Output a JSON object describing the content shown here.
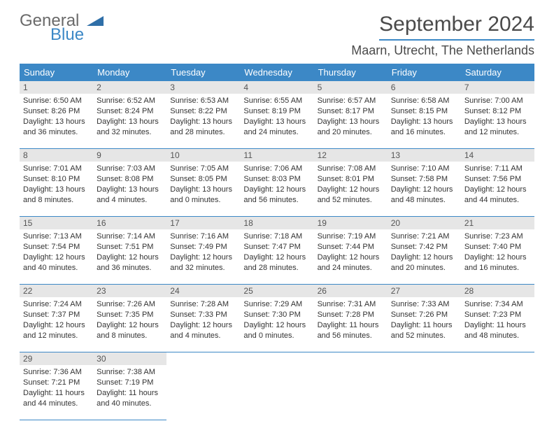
{
  "brand": {
    "name1": "General",
    "name2": "Blue"
  },
  "title": {
    "month": "September 2024",
    "location": "Maarn, Utrecht, The Netherlands"
  },
  "colors": {
    "accent": "#3c88c6",
    "header_bg": "#3c88c6",
    "daynum_bg": "#e6e6e6"
  },
  "weekdays": [
    "Sunday",
    "Monday",
    "Tuesday",
    "Wednesday",
    "Thursday",
    "Friday",
    "Saturday"
  ],
  "days": [
    {
      "n": "1",
      "sunrise": "Sunrise: 6:50 AM",
      "sunset": "Sunset: 8:26 PM",
      "day": "Daylight: 13 hours and 36 minutes."
    },
    {
      "n": "2",
      "sunrise": "Sunrise: 6:52 AM",
      "sunset": "Sunset: 8:24 PM",
      "day": "Daylight: 13 hours and 32 minutes."
    },
    {
      "n": "3",
      "sunrise": "Sunrise: 6:53 AM",
      "sunset": "Sunset: 8:22 PM",
      "day": "Daylight: 13 hours and 28 minutes."
    },
    {
      "n": "4",
      "sunrise": "Sunrise: 6:55 AM",
      "sunset": "Sunset: 8:19 PM",
      "day": "Daylight: 13 hours and 24 minutes."
    },
    {
      "n": "5",
      "sunrise": "Sunrise: 6:57 AM",
      "sunset": "Sunset: 8:17 PM",
      "day": "Daylight: 13 hours and 20 minutes."
    },
    {
      "n": "6",
      "sunrise": "Sunrise: 6:58 AM",
      "sunset": "Sunset: 8:15 PM",
      "day": "Daylight: 13 hours and 16 minutes."
    },
    {
      "n": "7",
      "sunrise": "Sunrise: 7:00 AM",
      "sunset": "Sunset: 8:12 PM",
      "day": "Daylight: 13 hours and 12 minutes."
    },
    {
      "n": "8",
      "sunrise": "Sunrise: 7:01 AM",
      "sunset": "Sunset: 8:10 PM",
      "day": "Daylight: 13 hours and 8 minutes."
    },
    {
      "n": "9",
      "sunrise": "Sunrise: 7:03 AM",
      "sunset": "Sunset: 8:08 PM",
      "day": "Daylight: 13 hours and 4 minutes."
    },
    {
      "n": "10",
      "sunrise": "Sunrise: 7:05 AM",
      "sunset": "Sunset: 8:05 PM",
      "day": "Daylight: 13 hours and 0 minutes."
    },
    {
      "n": "11",
      "sunrise": "Sunrise: 7:06 AM",
      "sunset": "Sunset: 8:03 PM",
      "day": "Daylight: 12 hours and 56 minutes."
    },
    {
      "n": "12",
      "sunrise": "Sunrise: 7:08 AM",
      "sunset": "Sunset: 8:01 PM",
      "day": "Daylight: 12 hours and 52 minutes."
    },
    {
      "n": "13",
      "sunrise": "Sunrise: 7:10 AM",
      "sunset": "Sunset: 7:58 PM",
      "day": "Daylight: 12 hours and 48 minutes."
    },
    {
      "n": "14",
      "sunrise": "Sunrise: 7:11 AM",
      "sunset": "Sunset: 7:56 PM",
      "day": "Daylight: 12 hours and 44 minutes."
    },
    {
      "n": "15",
      "sunrise": "Sunrise: 7:13 AM",
      "sunset": "Sunset: 7:54 PM",
      "day": "Daylight: 12 hours and 40 minutes."
    },
    {
      "n": "16",
      "sunrise": "Sunrise: 7:14 AM",
      "sunset": "Sunset: 7:51 PM",
      "day": "Daylight: 12 hours and 36 minutes."
    },
    {
      "n": "17",
      "sunrise": "Sunrise: 7:16 AM",
      "sunset": "Sunset: 7:49 PM",
      "day": "Daylight: 12 hours and 32 minutes."
    },
    {
      "n": "18",
      "sunrise": "Sunrise: 7:18 AM",
      "sunset": "Sunset: 7:47 PM",
      "day": "Daylight: 12 hours and 28 minutes."
    },
    {
      "n": "19",
      "sunrise": "Sunrise: 7:19 AM",
      "sunset": "Sunset: 7:44 PM",
      "day": "Daylight: 12 hours and 24 minutes."
    },
    {
      "n": "20",
      "sunrise": "Sunrise: 7:21 AM",
      "sunset": "Sunset: 7:42 PM",
      "day": "Daylight: 12 hours and 20 minutes."
    },
    {
      "n": "21",
      "sunrise": "Sunrise: 7:23 AM",
      "sunset": "Sunset: 7:40 PM",
      "day": "Daylight: 12 hours and 16 minutes."
    },
    {
      "n": "22",
      "sunrise": "Sunrise: 7:24 AM",
      "sunset": "Sunset: 7:37 PM",
      "day": "Daylight: 12 hours and 12 minutes."
    },
    {
      "n": "23",
      "sunrise": "Sunrise: 7:26 AM",
      "sunset": "Sunset: 7:35 PM",
      "day": "Daylight: 12 hours and 8 minutes."
    },
    {
      "n": "24",
      "sunrise": "Sunrise: 7:28 AM",
      "sunset": "Sunset: 7:33 PM",
      "day": "Daylight: 12 hours and 4 minutes."
    },
    {
      "n": "25",
      "sunrise": "Sunrise: 7:29 AM",
      "sunset": "Sunset: 7:30 PM",
      "day": "Daylight: 12 hours and 0 minutes."
    },
    {
      "n": "26",
      "sunrise": "Sunrise: 7:31 AM",
      "sunset": "Sunset: 7:28 PM",
      "day": "Daylight: 11 hours and 56 minutes."
    },
    {
      "n": "27",
      "sunrise": "Sunrise: 7:33 AM",
      "sunset": "Sunset: 7:26 PM",
      "day": "Daylight: 11 hours and 52 minutes."
    },
    {
      "n": "28",
      "sunrise": "Sunrise: 7:34 AM",
      "sunset": "Sunset: 7:23 PM",
      "day": "Daylight: 11 hours and 48 minutes."
    },
    {
      "n": "29",
      "sunrise": "Sunrise: 7:36 AM",
      "sunset": "Sunset: 7:21 PM",
      "day": "Daylight: 11 hours and 44 minutes."
    },
    {
      "n": "30",
      "sunrise": "Sunrise: 7:38 AM",
      "sunset": "Sunset: 7:19 PM",
      "day": "Daylight: 11 hours and 40 minutes."
    }
  ]
}
